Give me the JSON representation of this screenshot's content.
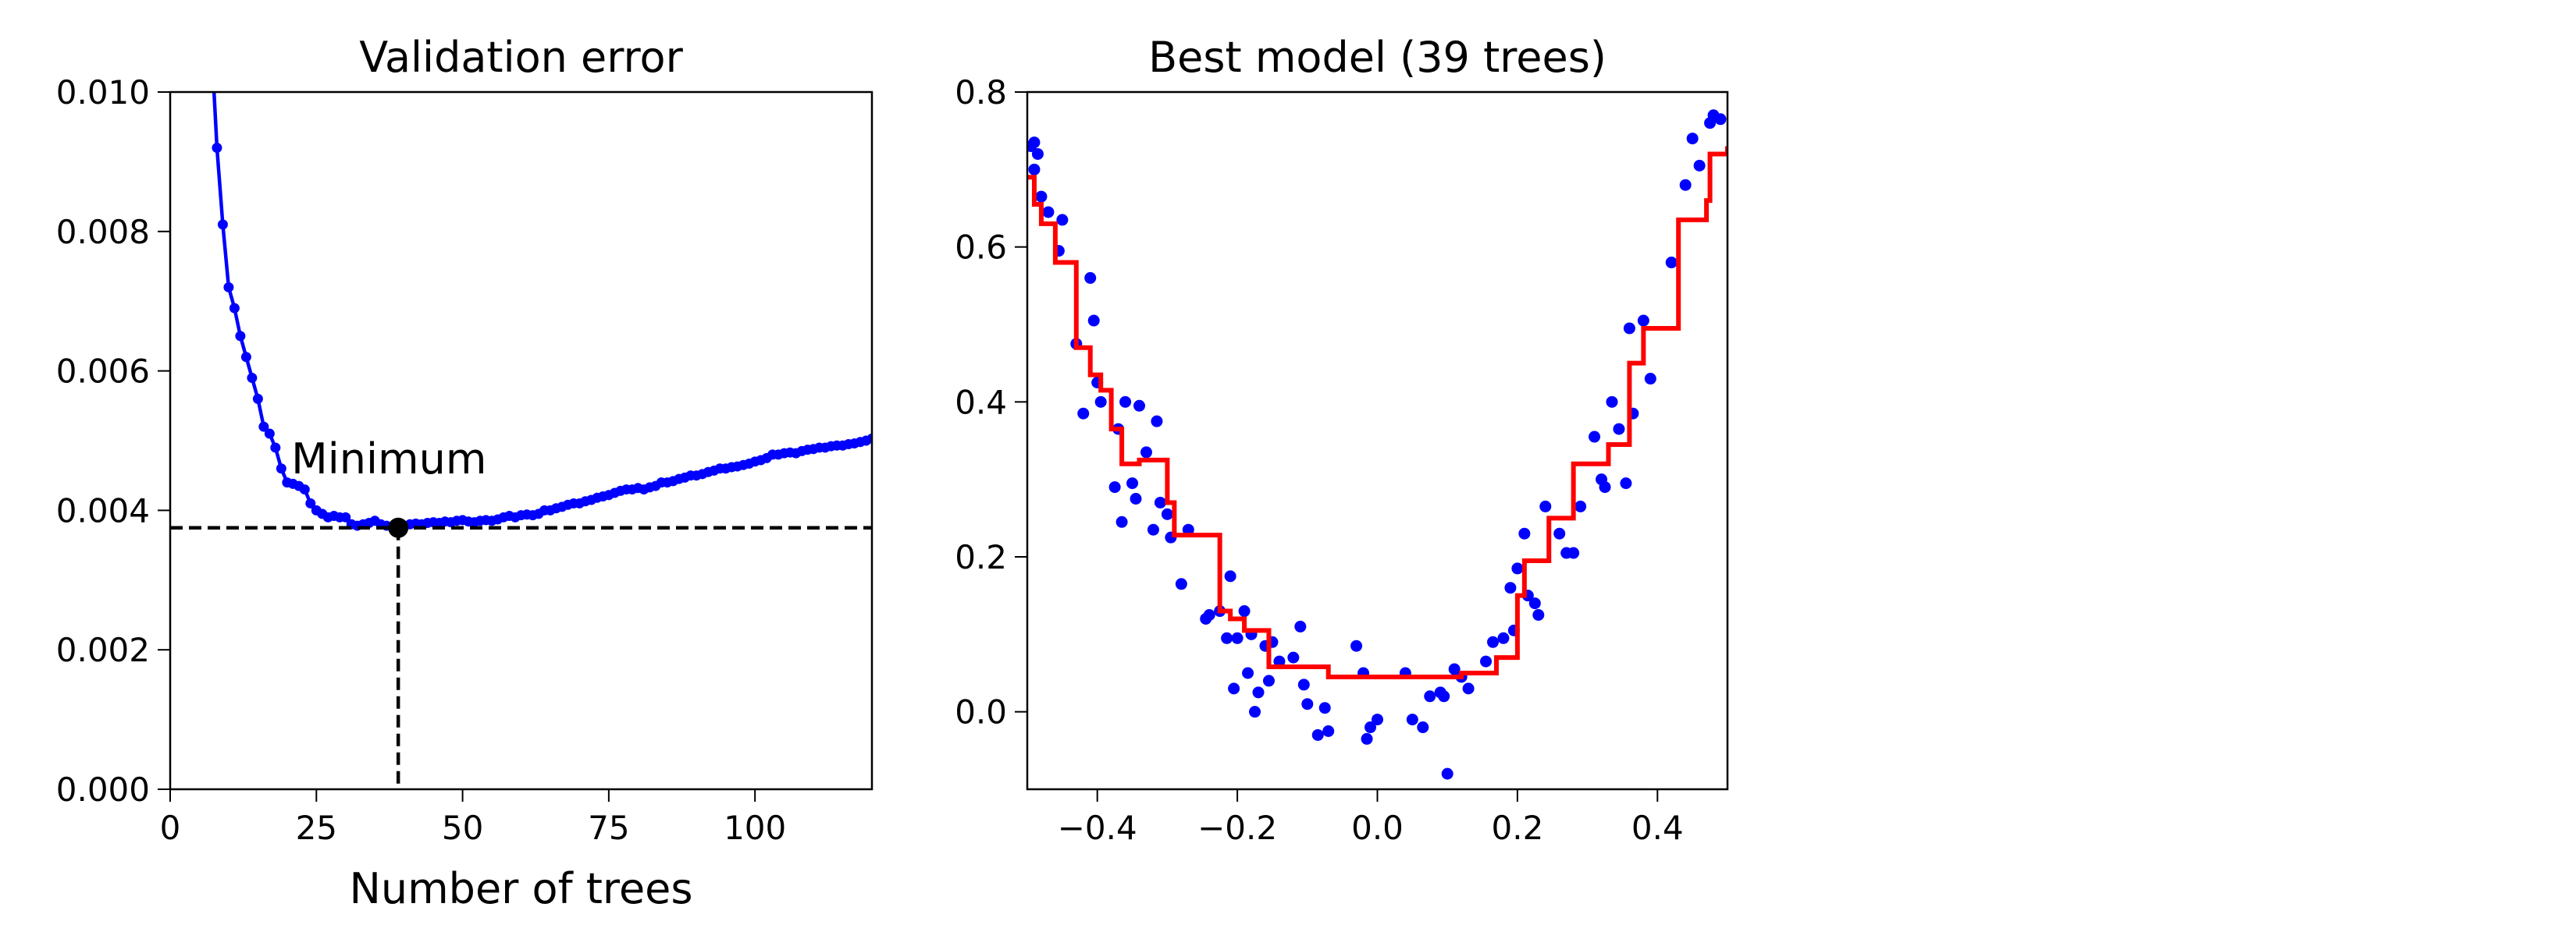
{
  "chart_data": [
    {
      "type": "line",
      "title": "Validation error",
      "xlabel": "Number of trees",
      "color": "#0000ff",
      "xlim": [
        0,
        120
      ],
      "ylim": [
        0,
        0.01
      ],
      "xticks": [
        0,
        25,
        50,
        75,
        100
      ],
      "yticks": [
        {
          "value": 0,
          "label": "0.000"
        },
        0.002,
        0.004,
        0.006,
        0.008,
        {
          "value": 0.01,
          "label": "0.010"
        }
      ],
      "grid": false,
      "x": [
        7,
        8,
        9,
        10,
        11,
        12,
        13,
        14,
        15,
        16,
        17,
        18,
        19,
        20,
        21,
        22,
        23,
        24,
        25,
        26,
        27,
        28,
        29,
        30,
        31,
        32,
        33,
        34,
        35,
        36,
        37,
        38,
        39,
        40,
        41,
        42,
        43,
        44,
        45,
        46,
        47,
        48,
        49,
        50,
        51,
        52,
        53,
        54,
        55,
        56,
        57,
        58,
        59,
        60,
        61,
        62,
        63,
        64,
        65,
        66,
        67,
        68,
        69,
        70,
        71,
        72,
        73,
        74,
        75,
        76,
        77,
        78,
        79,
        80,
        81,
        82,
        83,
        84,
        85,
        86,
        87,
        88,
        89,
        90,
        91,
        92,
        93,
        94,
        95,
        96,
        97,
        98,
        99,
        100,
        101,
        102,
        103,
        104,
        105,
        106,
        107,
        108,
        109,
        110,
        111,
        112,
        113,
        114,
        115,
        116,
        117,
        118,
        119,
        120
      ],
      "values": [
        0.0108,
        0.0092,
        0.0081,
        0.0072,
        0.0069,
        0.0065,
        0.0062,
        0.0059,
        0.0056,
        0.0052,
        0.0051,
        0.0049,
        0.0046,
        0.0044,
        0.00438,
        0.00435,
        0.0043,
        0.0041,
        0.004,
        0.00395,
        0.0039,
        0.00392,
        0.0039,
        0.0039,
        0.0038,
        0.00378,
        0.0038,
        0.00382,
        0.00385,
        0.0038,
        0.00378,
        0.00377,
        0.00375,
        0.00377,
        0.0038,
        0.00381,
        0.0038,
        0.00382,
        0.00383,
        0.00382,
        0.00384,
        0.00383,
        0.00385,
        0.00386,
        0.00384,
        0.00383,
        0.00385,
        0.00386,
        0.00385,
        0.00387,
        0.0039,
        0.00392,
        0.0039,
        0.00393,
        0.00394,
        0.00393,
        0.00395,
        0.004,
        0.004,
        0.00403,
        0.00405,
        0.00408,
        0.0041,
        0.0041,
        0.00413,
        0.00415,
        0.00418,
        0.0042,
        0.00422,
        0.00425,
        0.00428,
        0.0043,
        0.0043,
        0.00432,
        0.0043,
        0.00433,
        0.00435,
        0.0044,
        0.0044,
        0.00442,
        0.00445,
        0.00447,
        0.0045,
        0.0045,
        0.00452,
        0.00455,
        0.00457,
        0.0046,
        0.0046,
        0.00462,
        0.00463,
        0.00465,
        0.00467,
        0.0047,
        0.00472,
        0.00475,
        0.0048,
        0.0048,
        0.00482,
        0.00483,
        0.00482,
        0.00485,
        0.00487,
        0.00488,
        0.0049,
        0.0049,
        0.00492,
        0.00493,
        0.00493,
        0.00495,
        0.00496,
        0.00498,
        0.005,
        0.00503
      ],
      "minimum": {
        "label": "Minimum",
        "x": 39,
        "y": 0.00375
      }
    },
    {
      "type": "scatter",
      "title": "Best model (39 trees)",
      "xlim": [
        -0.5,
        0.5
      ],
      "ylim": [
        -0.1,
        0.8
      ],
      "xticks": [
        {
          "value": -0.4,
          "label": "−0.4"
        },
        {
          "value": -0.2,
          "label": "−0.2"
        },
        {
          "value": 0,
          "label": "0.0"
        },
        0.2,
        0.4
      ],
      "yticks": [
        {
          "value": 0,
          "label": "0.0"
        },
        0.2,
        0.4,
        0.6,
        0.8
      ],
      "grid": false,
      "series": [
        {
          "type": "scatter",
          "color": "#0000ff",
          "x": [
            -0.495,
            -0.49,
            -0.485,
            -0.49,
            -0.48,
            -0.47,
            -0.455,
            -0.45,
            -0.43,
            -0.42,
            -0.41,
            -0.405,
            -0.4,
            -0.395,
            -0.375,
            -0.37,
            -0.365,
            -0.36,
            -0.35,
            -0.345,
            -0.34,
            -0.33,
            -0.32,
            -0.315,
            -0.31,
            -0.3,
            -0.295,
            -0.28,
            -0.27,
            -0.245,
            -0.24,
            -0.225,
            -0.215,
            -0.21,
            -0.205,
            -0.2,
            -0.19,
            -0.185,
            -0.18,
            -0.175,
            -0.17,
            -0.16,
            -0.155,
            -0.15,
            -0.14,
            -0.12,
            -0.11,
            -0.105,
            -0.1,
            -0.085,
            -0.075,
            -0.07,
            -0.03,
            -0.02,
            -0.015,
            -0.01,
            0,
            0.04,
            0.05,
            0.065,
            0.075,
            0.09,
            0.095,
            0.1,
            0.11,
            0.12,
            0.13,
            0.155,
            0.165,
            0.18,
            0.19,
            0.195,
            0.2,
            0.21,
            0.215,
            0.225,
            0.23,
            0.24,
            0.26,
            0.27,
            0.28,
            0.29,
            0.31,
            0.32,
            0.325,
            0.335,
            0.345,
            0.355,
            0.36,
            0.365,
            0.38,
            0.39,
            0.42,
            0.44,
            0.45,
            0.46,
            0.475,
            0.48,
            0.49
          ],
          "values": [
            0.73,
            0.735,
            0.72,
            0.7,
            0.665,
            0.645,
            0.595,
            0.635,
            0.475,
            0.385,
            0.56,
            0.505,
            0.425,
            0.4,
            0.29,
            0.365,
            0.245,
            0.4,
            0.295,
            0.275,
            0.395,
            0.335,
            0.235,
            0.375,
            0.27,
            0.255,
            0.225,
            0.165,
            0.235,
            0.12,
            0.125,
            0.13,
            0.095,
            0.175,
            0.03,
            0.095,
            0.13,
            0.05,
            0.1,
            0,
            0.025,
            0.085,
            0.04,
            0.09,
            0.065,
            0.07,
            0.11,
            0.035,
            0.01,
            -0.03,
            0.005,
            -0.025,
            0.085,
            0.05,
            -0.035,
            -0.02,
            -0.01,
            0.05,
            -0.01,
            -0.02,
            0.02,
            0.025,
            0.02,
            -0.08,
            0.055,
            0.045,
            0.03,
            0.065,
            0.09,
            0.095,
            0.16,
            0.105,
            0.185,
            0.23,
            0.15,
            0.14,
            0.125,
            0.265,
            0.23,
            0.205,
            0.205,
            0.265,
            0.355,
            0.3,
            0.29,
            0.4,
            0.365,
            0.295,
            0.495,
            0.385,
            0.505,
            0.43,
            0.58,
            0.68,
            0.74,
            0.705,
            0.76,
            0.77,
            0.765
          ]
        },
        {
          "type": "step",
          "color": "#ff0000",
          "x": [
            -0.5,
            -0.49,
            -0.48,
            -0.46,
            -0.43,
            -0.41,
            -0.395,
            -0.38,
            -0.365,
            -0.34,
            -0.3,
            -0.29,
            -0.225,
            -0.21,
            -0.19,
            -0.155,
            -0.07,
            0.12,
            0.17,
            0.2,
            0.21,
            0.245,
            0.28,
            0.33,
            0.36,
            0.38,
            0.43,
            0.47,
            0.475,
            0.5
          ],
          "values": [
            0.69,
            0.655,
            0.63,
            0.58,
            0.47,
            0.435,
            0.415,
            0.365,
            0.32,
            0.325,
            0.27,
            0.228,
            0.13,
            0.12,
            0.105,
            0.058,
            0.045,
            0.05,
            0.07,
            0.15,
            0.195,
            0.25,
            0.32,
            0.345,
            0.45,
            0.495,
            0.635,
            0.66,
            0.72,
            0.73
          ]
        }
      ]
    }
  ]
}
